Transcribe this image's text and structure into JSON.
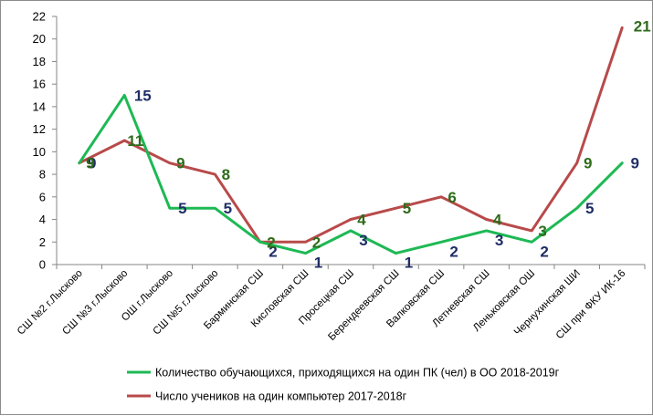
{
  "chart_data": {
    "type": "line",
    "categories": [
      "СШ №2 г.Лысково",
      "СШ №3 г.Лысково",
      "ОШ г.Лысково",
      "СШ №5 г.Лысково",
      "Барминская  СШ",
      "Кисловская  СШ",
      "Просецкая СШ",
      "Берендеевская СШ",
      "Валковская  СШ",
      "Летневская СШ",
      "Леньковская  ОШ",
      "Чернухинская  ШИ",
      "СШ при ФКУ ИК-16"
    ],
    "series": [
      {
        "name": "Количество обучающихся, приходящихся на один ПК (чел) в ОО 2018-2019г",
        "color": "#1db954",
        "label_color": "#1f2e66",
        "values": [
          9,
          15,
          5,
          5,
          2,
          1,
          3,
          1,
          2,
          3,
          2,
          5,
          9
        ]
      },
      {
        "name": "Число учеников на один компьютер 2017-2018г",
        "color": "#b84a4a",
        "label_color": "#2e6b1a",
        "values": [
          9,
          11,
          9,
          8,
          2,
          2,
          4,
          5,
          6,
          4,
          3,
          9,
          21
        ]
      }
    ],
    "ylim": [
      0,
      22
    ],
    "yticks": [
      "0",
      "2",
      "4",
      "6",
      "8",
      "10",
      "12",
      "14",
      "16",
      "18",
      "20",
      "22"
    ],
    "grid": false,
    "legend_position": "bottom"
  }
}
